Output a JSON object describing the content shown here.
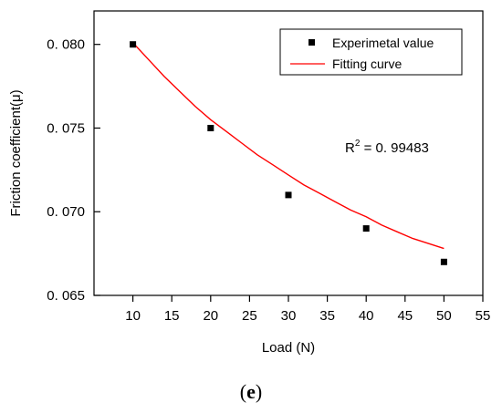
{
  "chart_data": {
    "type": "scatter",
    "xlabel": "Load (N)",
    "ylabel": "Friction coefficient(μ)",
    "xlim": [
      5,
      55
    ],
    "ylim": [
      0.065,
      0.082
    ],
    "x_ticks": [
      10,
      15,
      20,
      25,
      30,
      35,
      40,
      45,
      50,
      55
    ],
    "x_tick_labels": [
      "10",
      "15",
      "20",
      "25",
      "30",
      "35",
      "40",
      "45",
      "50",
      "55"
    ],
    "y_ticks": [
      0.065,
      0.07,
      0.075,
      0.08
    ],
    "y_tick_labels": [
      "0. 065",
      "0. 070",
      "0. 075",
      "0. 080"
    ],
    "grid": false,
    "legend_position": "top-right",
    "series": [
      {
        "name": "Experimetal value",
        "kind": "scatter",
        "color": "#000000",
        "marker": "square",
        "x": [
          10,
          20,
          30,
          40,
          50
        ],
        "y": [
          0.08,
          0.075,
          0.071,
          0.069,
          0.067
        ]
      },
      {
        "name": "Fitting curve",
        "kind": "line",
        "color": "#ff0000",
        "x": [
          10,
          12,
          14,
          16,
          18,
          20,
          22,
          24,
          26,
          28,
          30,
          32,
          34,
          36,
          38,
          40,
          42,
          44,
          46,
          48,
          50
        ],
        "y": [
          0.0801,
          0.0791,
          0.0781,
          0.0772,
          0.0763,
          0.0755,
          0.0748,
          0.0741,
          0.0734,
          0.0728,
          0.0722,
          0.0716,
          0.0711,
          0.0706,
          0.0701,
          0.0697,
          0.0692,
          0.0688,
          0.0684,
          0.0681,
          0.0678
        ]
      }
    ],
    "annotation": {
      "r_prefix": "R",
      "r_exponent": "2",
      "r_value": " = 0. 99483"
    },
    "panel_label": {
      "open": "(",
      "letter": "e",
      "close": ")"
    }
  }
}
